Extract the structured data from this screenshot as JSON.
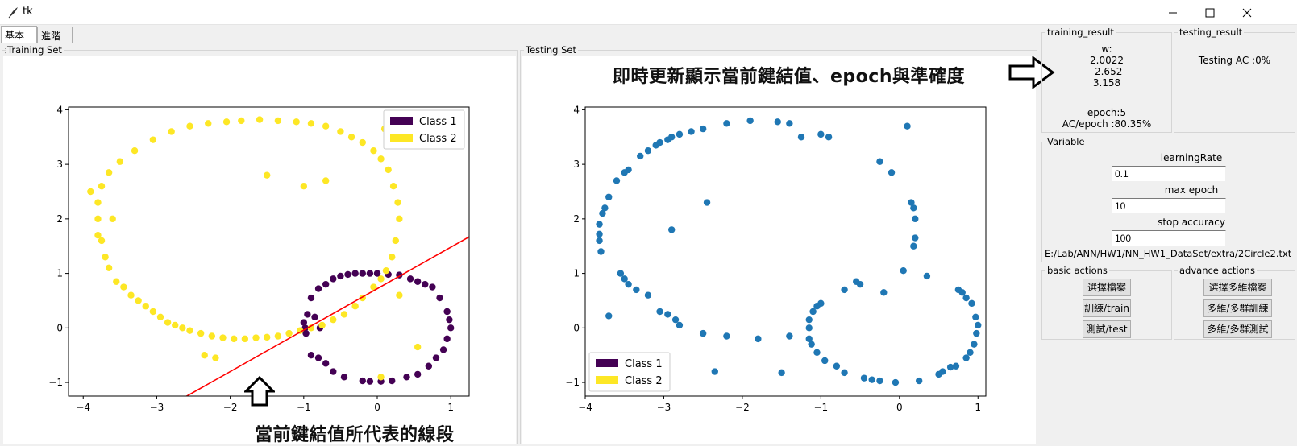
{
  "window": {
    "title": "tk"
  },
  "tabs": [
    {
      "label": "基本題"
    },
    {
      "label": "進階題"
    }
  ],
  "training_panel": {
    "label": "Training Set"
  },
  "testing_panel": {
    "label": "Testing Set"
  },
  "annotations": {
    "top": "即時更新顯示當前鍵結值、epoch與準確度",
    "bottom": "當前鍵結值所代表的線段"
  },
  "training_result": {
    "label": "training_result",
    "w_label": "w:",
    "w_values": [
      "2.0022",
      "-2.652",
      "3.158"
    ],
    "epoch": "epoch:5",
    "ac": "AC/epoch :80.35%"
  },
  "testing_result": {
    "label": "testing_result",
    "ac": "Testing AC :0%"
  },
  "variable": {
    "label": "Variable",
    "learning_rate_label": "learningRate",
    "learning_rate": "0.1",
    "max_epoch_label": "max epoch",
    "max_epoch": "10",
    "stop_accuracy_label": "stop accuracy",
    "stop_accuracy": "100",
    "file_path": "E:/Lab/ANN/HW1/NN_HW1_DataSet/extra/2Circle2.txt"
  },
  "basic_actions": {
    "label": "basic actions",
    "select_file": "選擇檔案",
    "train": "訓練/train",
    "test": "測試/test"
  },
  "advance_actions": {
    "label": "advance actions",
    "select_multi": "選擇多維檔案",
    "multi_train": "多維/多群訓練",
    "multi_test": "多維/多群測試"
  },
  "colors": {
    "class1": "#440154",
    "class2": "#fde725",
    "test_points": "#1f77b4",
    "line": "#ff0000"
  },
  "chart_data": [
    {
      "type": "scatter",
      "xlim": [
        -4.2,
        1.25
      ],
      "ylim": [
        -1.25,
        4.05
      ],
      "xticks": [
        -4,
        -3,
        -2,
        -1,
        0,
        1
      ],
      "yticks": [
        -1,
        0,
        1,
        2,
        3,
        4
      ],
      "legend": {
        "position": "top-right",
        "entries": [
          "Class 1",
          "Class 2"
        ]
      },
      "line": {
        "w": [
          2.0022,
          -2.652,
          3.158
        ]
      },
      "series": [
        {
          "name": "Class 1",
          "points": [
            [
              -0.95,
              0.25
            ],
            [
              -0.9,
              0.55
            ],
            [
              -0.8,
              0.72
            ],
            [
              -0.7,
              0.8
            ],
            [
              -0.6,
              0.9
            ],
            [
              -0.5,
              0.95
            ],
            [
              -0.4,
              0.98
            ],
            [
              -0.3,
              1.0
            ],
            [
              -0.2,
              1.0
            ],
            [
              -0.1,
              1.0
            ],
            [
              0.0,
              1.0
            ],
            [
              0.15,
              0.98
            ],
            [
              0.3,
              0.97
            ],
            [
              0.45,
              0.9
            ],
            [
              0.55,
              0.85
            ],
            [
              0.65,
              0.8
            ],
            [
              0.75,
              0.75
            ],
            [
              0.85,
              0.55
            ],
            [
              0.95,
              0.3
            ],
            [
              0.98,
              0.15
            ],
            [
              1.0,
              0.0
            ],
            [
              0.95,
              -0.2
            ],
            [
              0.9,
              -0.4
            ],
            [
              0.8,
              -0.55
            ],
            [
              0.7,
              -0.7
            ],
            [
              0.55,
              -0.85
            ],
            [
              0.4,
              -0.9
            ],
            [
              0.2,
              -0.97
            ],
            [
              0.05,
              -0.98
            ],
            [
              -0.1,
              -0.98
            ],
            [
              -0.2,
              -0.97
            ],
            [
              -0.45,
              -0.9
            ],
            [
              -0.6,
              -0.8
            ],
            [
              -0.7,
              -0.65
            ],
            [
              -0.8,
              -0.55
            ],
            [
              -0.9,
              -0.5
            ],
            [
              -0.97,
              -0.1
            ],
            [
              -0.98,
              0.0
            ],
            [
              -1.0,
              0.1
            ],
            [
              -0.85,
              0.2
            ],
            [
              -0.78,
              0.0
            ]
          ]
        },
        {
          "name": "Class 2",
          "points": [
            [
              -3.9,
              2.5
            ],
            [
              -3.8,
              2.3
            ],
            [
              -3.8,
              2.0
            ],
            [
              -3.8,
              1.7
            ],
            [
              -3.75,
              1.6
            ],
            [
              -3.7,
              1.3
            ],
            [
              -3.65,
              1.1
            ],
            [
              -3.55,
              0.85
            ],
            [
              -3.45,
              0.75
            ],
            [
              -3.35,
              0.6
            ],
            [
              -3.25,
              0.5
            ],
            [
              -3.15,
              0.4
            ],
            [
              -3.05,
              0.3
            ],
            [
              -2.95,
              0.2
            ],
            [
              -2.85,
              0.1
            ],
            [
              -2.75,
              0.05
            ],
            [
              -2.65,
              0.0
            ],
            [
              -2.55,
              -0.05
            ],
            [
              -2.4,
              -0.1
            ],
            [
              -2.25,
              -0.15
            ],
            [
              -2.1,
              -0.18
            ],
            [
              -1.95,
              -0.2
            ],
            [
              -1.8,
              -0.2
            ],
            [
              -1.65,
              -0.18
            ],
            [
              -1.5,
              -0.17
            ],
            [
              -1.35,
              -0.15
            ],
            [
              -1.2,
              -0.1
            ],
            [
              -1.05,
              -0.05
            ],
            [
              -0.9,
              0.0
            ],
            [
              -0.75,
              0.05
            ],
            [
              -0.6,
              0.15
            ],
            [
              -0.45,
              0.25
            ],
            [
              -0.3,
              0.4
            ],
            [
              -0.2,
              0.55
            ],
            [
              -0.05,
              0.75
            ],
            [
              0.05,
              0.9
            ],
            [
              0.12,
              1.05
            ],
            [
              0.2,
              1.3
            ],
            [
              0.25,
              1.6
            ],
            [
              0.3,
              2.0
            ],
            [
              0.28,
              2.3
            ],
            [
              0.22,
              2.6
            ],
            [
              0.15,
              2.9
            ],
            [
              0.05,
              3.1
            ],
            [
              -0.05,
              3.25
            ],
            [
              -0.2,
              3.4
            ],
            [
              -0.35,
              3.5
            ],
            [
              -0.5,
              3.6
            ],
            [
              -0.7,
              3.7
            ],
            [
              -0.9,
              3.75
            ],
            [
              -1.1,
              3.78
            ],
            [
              -1.35,
              3.8
            ],
            [
              -1.6,
              3.82
            ],
            [
              -1.85,
              3.8
            ],
            [
              -2.05,
              3.78
            ],
            [
              -2.3,
              3.75
            ],
            [
              -2.55,
              3.7
            ],
            [
              -2.8,
              3.6
            ],
            [
              -3.05,
              3.45
            ],
            [
              -3.3,
              3.25
            ],
            [
              -3.5,
              3.05
            ],
            [
              -3.65,
              2.85
            ],
            [
              -3.75,
              2.6
            ],
            [
              -3.6,
              2.0
            ],
            [
              -1.5,
              2.8
            ],
            [
              -1.0,
              2.6
            ],
            [
              -0.7,
              2.7
            ],
            [
              -2.35,
              -0.5
            ],
            [
              -2.2,
              -0.55
            ],
            [
              0.05,
              -0.9
            ],
            [
              0.3,
              0.6
            ],
            [
              0.55,
              -0.35
            ],
            [
              0.1,
              3.65
            ]
          ]
        }
      ]
    },
    {
      "type": "scatter",
      "xlim": [
        -4.0,
        1.1
      ],
      "ylim": [
        -1.25,
        4.05
      ],
      "xticks": [
        -4,
        -3,
        -2,
        -1,
        0,
        1
      ],
      "yticks": [
        -1,
        0,
        1,
        2,
        3,
        4
      ],
      "legend": {
        "position": "bottom-left",
        "entries": [
          "Class 1",
          "Class 2"
        ]
      },
      "series": [
        {
          "points": [
            [
              -3.7,
              0.22
            ],
            [
              -3.8,
              1.4
            ],
            [
              -3.82,
              1.6
            ],
            [
              -3.82,
              1.72
            ],
            [
              -3.82,
              1.9
            ],
            [
              -3.78,
              2.1
            ],
            [
              -3.75,
              2.2
            ],
            [
              -3.7,
              2.4
            ],
            [
              -3.6,
              2.7
            ],
            [
              -3.5,
              2.85
            ],
            [
              -3.45,
              2.9
            ],
            [
              -3.3,
              3.15
            ],
            [
              -3.2,
              3.25
            ],
            [
              -3.1,
              3.35
            ],
            [
              -3.05,
              3.4
            ],
            [
              -2.95,
              3.45
            ],
            [
              -2.9,
              3.5
            ],
            [
              -2.8,
              3.55
            ],
            [
              -2.65,
              3.6
            ],
            [
              -2.5,
              3.65
            ],
            [
              -2.2,
              3.75
            ],
            [
              -1.9,
              3.8
            ],
            [
              -1.55,
              3.78
            ],
            [
              -1.4,
              3.75
            ],
            [
              -1.25,
              3.5
            ],
            [
              -1.0,
              3.55
            ],
            [
              -0.9,
              3.5
            ],
            [
              -0.25,
              3.05
            ],
            [
              -0.1,
              2.85
            ],
            [
              0.1,
              3.7
            ],
            [
              0.15,
              2.3
            ],
            [
              0.18,
              2.2
            ],
            [
              0.2,
              2.0
            ],
            [
              0.2,
              1.65
            ],
            [
              0.18,
              1.5
            ],
            [
              0.05,
              1.05
            ],
            [
              -0.2,
              0.65
            ],
            [
              -0.55,
              0.85
            ],
            [
              -0.5,
              0.8
            ],
            [
              -0.7,
              0.7
            ],
            [
              -1.0,
              0.45
            ],
            [
              -1.05,
              0.4
            ],
            [
              -1.1,
              0.3
            ],
            [
              -1.15,
              0.15
            ],
            [
              -1.15,
              0.0
            ],
            [
              -1.15,
              -0.2
            ],
            [
              -1.12,
              -0.3
            ],
            [
              -1.05,
              -0.45
            ],
            [
              -0.95,
              -0.6
            ],
            [
              -0.8,
              -0.7
            ],
            [
              -0.7,
              -0.82
            ],
            [
              -0.45,
              -0.92
            ],
            [
              -0.35,
              -0.95
            ],
            [
              -0.25,
              -0.97
            ],
            [
              -0.05,
              -1.0
            ],
            [
              0.25,
              -0.97
            ],
            [
              0.5,
              -0.85
            ],
            [
              0.55,
              -0.8
            ],
            [
              0.65,
              -0.72
            ],
            [
              0.72,
              -0.7
            ],
            [
              0.85,
              -0.55
            ],
            [
              0.9,
              -0.45
            ],
            [
              0.95,
              -0.3
            ],
            [
              0.98,
              -0.1
            ],
            [
              1.0,
              0.05
            ],
            [
              0.97,
              0.2
            ],
            [
              0.92,
              0.45
            ],
            [
              0.85,
              0.55
            ],
            [
              0.8,
              0.65
            ],
            [
              0.75,
              0.7
            ],
            [
              0.35,
              0.95
            ],
            [
              -2.45,
              2.3
            ],
            [
              -2.9,
              1.8
            ],
            [
              -3.55,
              1.0
            ],
            [
              -3.5,
              0.9
            ],
            [
              -3.45,
              0.8
            ],
            [
              -3.35,
              0.7
            ],
            [
              -3.2,
              0.6
            ],
            [
              -3.05,
              0.3
            ],
            [
              -2.95,
              0.25
            ],
            [
              -2.85,
              0.15
            ],
            [
              -2.8,
              0.05
            ],
            [
              -2.5,
              -0.1
            ],
            [
              -2.2,
              -0.15
            ],
            [
              -1.8,
              -0.2
            ],
            [
              -1.4,
              -0.15
            ],
            [
              -2.35,
              -0.8
            ],
            [
              -1.5,
              -0.82
            ]
          ]
        }
      ]
    }
  ]
}
